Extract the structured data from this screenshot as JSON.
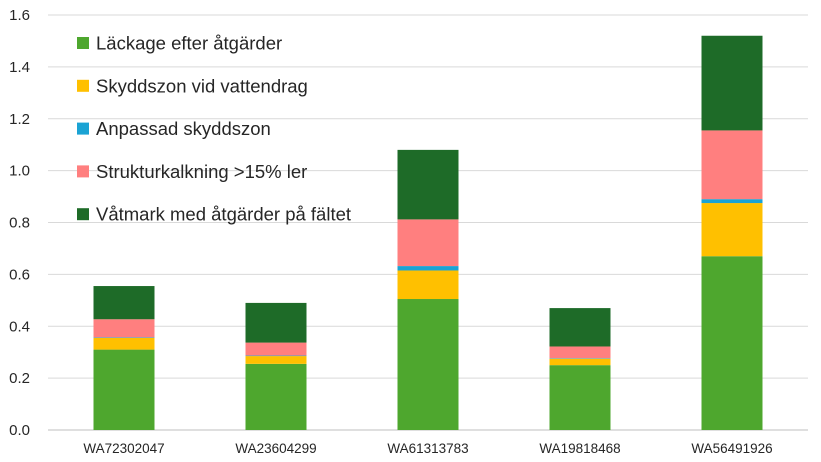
{
  "chart_data": {
    "type": "bar",
    "stacked": true,
    "title": "",
    "xlabel": "",
    "ylabel": "",
    "ylim": [
      0,
      1.6
    ],
    "y_ticks": [
      "0.0",
      "0.2",
      "0.4",
      "0.6",
      "0.8",
      "1.0",
      "1.2",
      "1.4",
      "1.6"
    ],
    "grid": true,
    "legend_position": "top-left",
    "categories": [
      "WA72302047",
      "WA23604299",
      "WA61313783",
      "WA19818468",
      "WA56491926"
    ],
    "series": [
      {
        "name": "Läckage efter åtgärder",
        "color": "#4EA72E",
        "values": [
          0.31,
          0.255,
          0.505,
          0.25,
          0.67
        ]
      },
      {
        "name": "Skyddszon vid vattendrag",
        "color": "#FFC000",
        "values": [
          0.045,
          0.03,
          0.11,
          0.025,
          0.205
        ]
      },
      {
        "name": "Anpassad skyddszon",
        "color": "#1AA3D4",
        "values": [
          0.002,
          0.002,
          0.017,
          0.002,
          0.015
        ]
      },
      {
        "name": "Strukturkalkning >15% ler",
        "color": "#FF7F7F",
        "values": [
          0.07,
          0.05,
          0.18,
          0.045,
          0.265
        ]
      },
      {
        "name": "Våtmark med åtgärder på fältet",
        "color": "#1E6B28",
        "values": [
          0.128,
          0.153,
          0.268,
          0.148,
          0.365
        ]
      }
    ]
  }
}
